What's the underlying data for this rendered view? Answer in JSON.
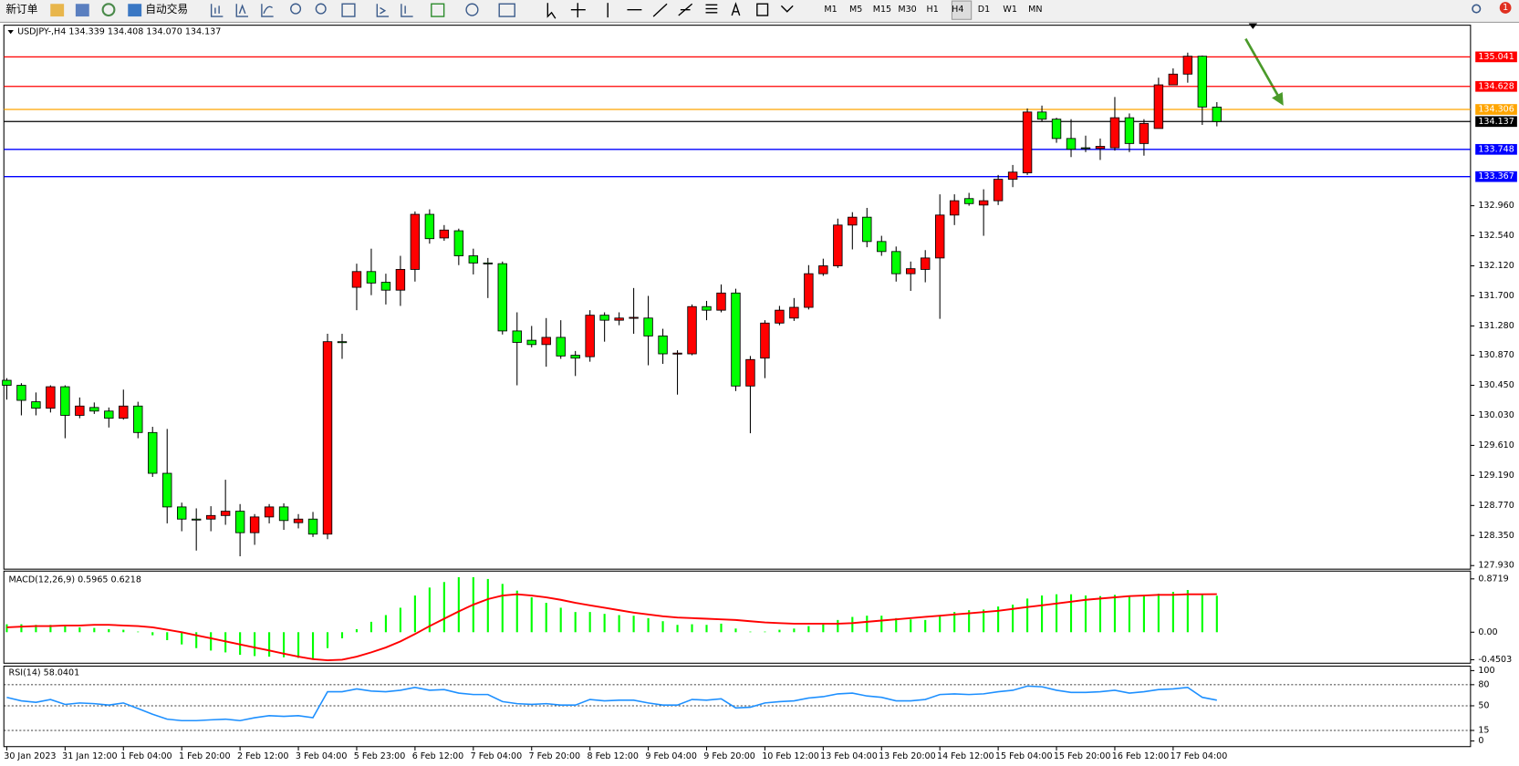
{
  "toolbar": {
    "new_order": "新订单",
    "auto_trading": "自动交易",
    "timeframes": [
      "M1",
      "M5",
      "M15",
      "M30",
      "H1",
      "H4",
      "D1",
      "W1",
      "MN"
    ],
    "notifications": 1
  },
  "chart_data": [
    {
      "type": "candlestick",
      "title": "USDJPY-,H4  134.339 134.408 134.070 134.137",
      "categories": [
        "30 Jan 2023",
        null,
        null,
        null,
        "31 Jan 12:00",
        null,
        null,
        null,
        "1 Feb 04:00",
        null,
        null,
        null,
        "1 Feb 20:00",
        null,
        null,
        null,
        "2 Feb 12:00",
        null,
        null,
        null,
        "3 Feb 04:00",
        null,
        null,
        null,
        "5 Feb 23:00",
        null,
        null,
        null,
        "6 Feb 12:00",
        null,
        null,
        null,
        "7 Feb 04:00",
        null,
        null,
        null,
        "7 Feb 20:00",
        null,
        null,
        null,
        "8 Feb 12:00",
        null,
        null,
        null,
        "9 Feb 04:00",
        null,
        null,
        null,
        "9 Feb 20:00",
        null,
        null,
        null,
        "10 Feb 12:00",
        null,
        null,
        null,
        "13 Feb 04:00",
        null,
        null,
        null,
        "13 Feb 20:00",
        null,
        null,
        null,
        "14 Feb 12:00",
        null,
        null,
        null,
        "15 Feb 04:00",
        null,
        null,
        null,
        "15 Feb 20:00",
        null,
        null,
        null,
        "16 Feb 12:00",
        null,
        null,
        null,
        "17 Feb 04:00",
        null,
        null,
        null
      ],
      "open": [
        130.52,
        130.45,
        130.22,
        130.13,
        130.43,
        130.03,
        130.14,
        130.09,
        129.99,
        130.16,
        129.79,
        129.22,
        128.75,
        128.58,
        128.58,
        128.63,
        128.69,
        128.39,
        128.61,
        128.75,
        128.53,
        128.58,
        128.37,
        131.06,
        131.82,
        132.04,
        131.89,
        131.78,
        132.07,
        132.84,
        132.51,
        132.61,
        132.26,
        132.16,
        132.15,
        131.21,
        131.08,
        131.02,
        131.12,
        130.87,
        130.85,
        131.43,
        131.36,
        131.39,
        131.39,
        131.14,
        130.89,
        130.89,
        131.55,
        131.5,
        131.74,
        130.44,
        130.83,
        131.32,
        131.39,
        131.54,
        132.01,
        132.12,
        132.69,
        132.8,
        132.46,
        132.32,
        132.01,
        132.07,
        132.23,
        132.83,
        133.06,
        132.97,
        133.03,
        133.33,
        133.42,
        134.27,
        134.17,
        133.9,
        133.77,
        133.76,
        133.77,
        134.19,
        133.83,
        134.04,
        134.65,
        134.8,
        135.05,
        134.339
      ],
      "high": [
        130.55,
        130.48,
        130.35,
        130.45,
        130.45,
        130.28,
        130.21,
        130.14,
        130.39,
        130.22,
        129.87,
        129.84,
        128.81,
        128.73,
        128.76,
        129.13,
        128.79,
        128.65,
        128.79,
        128.8,
        128.65,
        128.68,
        131.17,
        131.17,
        132.15,
        132.36,
        132.01,
        132.26,
        132.88,
        132.91,
        132.69,
        132.64,
        132.36,
        132.23,
        132.18,
        131.47,
        131.28,
        131.39,
        131.36,
        130.93,
        131.5,
        131.47,
        131.47,
        131.81,
        131.7,
        131.24,
        130.94,
        131.58,
        131.63,
        131.86,
        131.8,
        130.86,
        131.36,
        131.56,
        131.67,
        132.13,
        132.22,
        132.78,
        132.87,
        132.93,
        132.54,
        132.39,
        132.18,
        132.34,
        133.12,
        133.12,
        133.14,
        133.19,
        133.39,
        133.53,
        134.32,
        134.36,
        134.19,
        134.17,
        133.94,
        133.9,
        134.48,
        134.25,
        134.17,
        134.75,
        134.88,
        135.1,
        135.06,
        134.408
      ],
      "low": [
        130.25,
        130.03,
        130.03,
        130.07,
        129.71,
        129.99,
        130.05,
        129.86,
        129.97,
        129.71,
        129.17,
        128.52,
        128.41,
        128.14,
        128.41,
        128.5,
        128.06,
        128.22,
        128.52,
        128.43,
        128.45,
        128.33,
        128.3,
        130.82,
        131.5,
        131.71,
        131.58,
        131.56,
        131.9,
        132.43,
        132.47,
        132.13,
        132.0,
        131.67,
        131.16,
        130.45,
        130.98,
        130.71,
        130.82,
        130.58,
        130.78,
        131.06,
        131.29,
        131.17,
        130.73,
        130.75,
        130.32,
        130.87,
        131.36,
        131.47,
        130.37,
        129.78,
        130.55,
        131.29,
        131.35,
        131.51,
        131.98,
        132.09,
        132.35,
        132.38,
        132.26,
        131.9,
        131.77,
        131.89,
        131.38,
        132.69,
        132.96,
        132.54,
        132.97,
        133.22,
        133.39,
        134.14,
        133.84,
        133.64,
        133.71,
        133.6,
        133.73,
        133.71,
        133.66,
        134.04,
        134.65,
        134.68,
        134.09,
        134.07
      ],
      "close": [
        130.45,
        130.24,
        130.13,
        130.43,
        130.03,
        130.16,
        130.09,
        129.99,
        130.16,
        129.79,
        129.22,
        128.75,
        128.58,
        128.57,
        128.63,
        128.69,
        128.39,
        128.61,
        128.75,
        128.56,
        128.58,
        128.37,
        131.06,
        131.05,
        132.04,
        131.88,
        131.78,
        132.07,
        132.84,
        132.5,
        132.62,
        132.26,
        132.16,
        132.15,
        131.21,
        131.05,
        131.02,
        131.12,
        130.86,
        130.83,
        131.43,
        131.36,
        131.39,
        131.4,
        131.14,
        130.89,
        130.9,
        131.55,
        131.5,
        131.74,
        130.44,
        130.81,
        131.32,
        131.5,
        131.54,
        132.01,
        132.12,
        132.69,
        132.8,
        132.46,
        132.32,
        132.01,
        132.08,
        132.23,
        132.83,
        133.03,
        132.99,
        133.03,
        133.33,
        133.43,
        134.27,
        134.17,
        133.9,
        133.75,
        133.76,
        133.79,
        134.19,
        133.83,
        134.11,
        134.65,
        134.8,
        135.05,
        134.34,
        134.137
      ],
      "up_color": "#ff0000",
      "down_color": "#00ff00",
      "ylim": [
        127.88,
        135.47
      ],
      "yticks": [
        {
          "value": 132.96,
          "label": "132.960"
        },
        {
          "value": 132.54,
          "label": "132.540"
        },
        {
          "value": 132.12,
          "label": "132.120"
        },
        {
          "value": 131.7,
          "label": "131.700"
        },
        {
          "value": 131.28,
          "label": "131.280"
        },
        {
          "value": 130.87,
          "label": "130.870"
        },
        {
          "value": 130.45,
          "label": "130.450"
        },
        {
          "value": 130.03,
          "label": "130.030"
        },
        {
          "value": 129.61,
          "label": "129.610"
        },
        {
          "value": 129.19,
          "label": "129.190"
        },
        {
          "value": 128.77,
          "label": "128.770"
        },
        {
          "value": 128.35,
          "label": "128.350"
        },
        {
          "value": 127.93,
          "label": "127.930"
        }
      ],
      "lines": [
        {
          "value": 135.041,
          "color": "#ff0000"
        },
        {
          "value": 134.628,
          "color": "#ff0000"
        },
        {
          "value": 134.306,
          "color": "#ffa500"
        },
        {
          "value": 134.137,
          "color": "#000000"
        },
        {
          "value": 133.748,
          "color": "#0000ff"
        },
        {
          "value": 133.367,
          "color": "#0000ff"
        }
      ]
    },
    {
      "type": "macd",
      "title": "MACD(12,26,9) 0.5965 0.6218",
      "histogram": {
        "color": "#00ff00",
        "values": [
          0.13,
          0.13,
          0.12,
          0.12,
          0.1,
          0.08,
          0.07,
          0.05,
          0.04,
          0.01,
          -0.05,
          -0.13,
          -0.2,
          -0.26,
          -0.3,
          -0.33,
          -0.37,
          -0.39,
          -0.4,
          -0.41,
          -0.42,
          -0.44,
          -0.26,
          -0.1,
          0.05,
          0.17,
          0.28,
          0.4,
          0.6,
          0.73,
          0.82,
          0.9,
          0.9,
          0.87,
          0.79,
          0.68,
          0.57,
          0.48,
          0.4,
          0.33,
          0.33,
          0.3,
          0.28,
          0.27,
          0.23,
          0.18,
          0.12,
          0.13,
          0.12,
          0.14,
          0.06,
          0.01,
          0.01,
          0.04,
          0.06,
          0.1,
          0.13,
          0.2,
          0.25,
          0.27,
          0.27,
          0.23,
          0.21,
          0.2,
          0.27,
          0.33,
          0.36,
          0.37,
          0.42,
          0.45,
          0.55,
          0.6,
          0.62,
          0.62,
          0.6,
          0.59,
          0.61,
          0.6,
          0.6,
          0.63,
          0.66,
          0.69,
          0.63,
          0.5965
        ]
      },
      "signal": {
        "color": "#ff0000",
        "values": [
          0.08,
          0.09,
          0.1,
          0.1,
          0.11,
          0.11,
          0.12,
          0.12,
          0.11,
          0.1,
          0.08,
          0.04,
          0.0,
          -0.05,
          -0.1,
          -0.15,
          -0.2,
          -0.25,
          -0.3,
          -0.35,
          -0.4,
          -0.44,
          -0.46,
          -0.45,
          -0.4,
          -0.33,
          -0.25,
          -0.15,
          -0.03,
          0.1,
          0.22,
          0.34,
          0.45,
          0.54,
          0.6,
          0.62,
          0.6,
          0.57,
          0.53,
          0.48,
          0.44,
          0.4,
          0.36,
          0.32,
          0.29,
          0.26,
          0.24,
          0.23,
          0.22,
          0.21,
          0.2,
          0.18,
          0.16,
          0.15,
          0.14,
          0.14,
          0.14,
          0.14,
          0.15,
          0.17,
          0.19,
          0.21,
          0.23,
          0.25,
          0.27,
          0.29,
          0.31,
          0.33,
          0.35,
          0.38,
          0.41,
          0.44,
          0.47,
          0.5,
          0.53,
          0.55,
          0.57,
          0.59,
          0.6,
          0.61,
          0.61,
          0.62,
          0.62,
          0.6218
        ]
      },
      "ylim": [
        -0.507,
        0.983
      ],
      "yticks": [
        0.8719,
        {
          "value": 0,
          "label": "0.00"
        },
        -0.4503
      ]
    },
    {
      "type": "rsi",
      "title": "RSI(14) 58.0401",
      "color": "#1e90ff",
      "values": [
        62,
        57,
        55,
        59,
        52,
        54,
        53,
        51,
        54,
        46,
        38,
        31,
        29,
        29,
        30,
        31,
        29,
        33,
        36,
        35,
        36,
        33,
        70,
        70,
        74,
        71,
        70,
        72,
        76,
        72,
        73,
        68,
        66,
        66,
        56,
        53,
        52,
        53,
        51,
        51,
        59,
        57,
        58,
        58,
        54,
        51,
        51,
        59,
        58,
        60,
        47,
        48,
        54,
        56,
        57,
        61,
        63,
        67,
        68,
        64,
        62,
        57,
        57,
        59,
        66,
        67,
        66,
        67,
        70,
        72,
        78,
        77,
        72,
        69,
        69,
        70,
        72,
        68,
        70,
        73,
        74,
        76,
        62,
        58.0401
      ],
      "ylim": [
        -8,
        105
      ],
      "yticks": [
        100,
        80,
        50,
        15,
        0
      ],
      "levels": [
        80,
        50,
        15
      ]
    }
  ]
}
